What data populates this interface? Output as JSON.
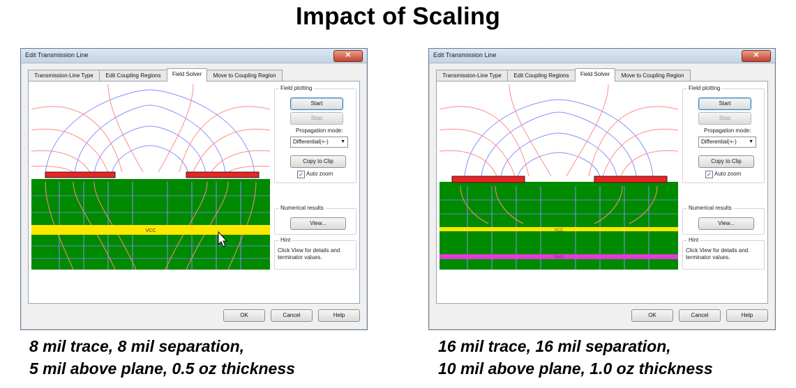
{
  "slide": {
    "title": "Impact of Scaling"
  },
  "dialog_common": {
    "window_title": "Edit Transmission Line",
    "close_glyph": "✕",
    "tabs": [
      "Transmission-Line Type",
      "Edit Coupling Regions",
      "Field Solver",
      "Move to Coupling Region"
    ],
    "active_tab": "Field Solver",
    "field_plotting_label": "Field plotting",
    "start_label": "Start",
    "stop_label": "Stop",
    "propagation_mode_label": "Propagation mode:",
    "propagation_mode_value": "Differential(+-)",
    "copy_label": "Copy to Clip",
    "auto_zoom_label": "Auto zoom",
    "auto_zoom_checked": true,
    "numerical_results_label": "Numerical results",
    "view_label": "View...",
    "hint_label": "Hint",
    "hint_text": "Click View for details and terminator values.",
    "ok_label": "OK",
    "cancel_label": "Cancel",
    "help_label": "Help",
    "check_glyph": "✓",
    "dropdown_glyph": "▼"
  },
  "left_dialog": {
    "plane_label": "VCC",
    "caption_line1": "8 mil trace, 8 mil separation,",
    "caption_line2": "5 mil above plane, 0.5 oz thickness"
  },
  "right_dialog": {
    "plane_label": "VCC",
    "bottom_plane_label": "GND",
    "caption_line1": "16 mil trace, 16 mil separation,",
    "caption_line2": "10 mil above plane, 1.0 oz thickness"
  },
  "colors": {
    "dielectric": "#008a00",
    "plane": "#ffe800",
    "trace": "#ee2222",
    "electric_field": "#ff8a8a",
    "magnetic_field": "#8c8cff",
    "ground_plane": "#e23ad8"
  },
  "icons": {
    "cursor": "mouse-pointer-icon"
  }
}
